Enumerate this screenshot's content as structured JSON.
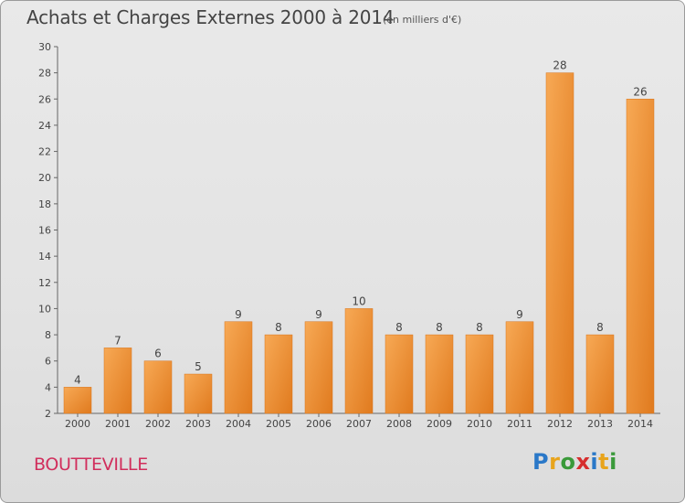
{
  "header": {
    "title": "Achats et Charges Externes 2000 à 2014",
    "unit": "(en milliers d'€)"
  },
  "footer": {
    "commune": "BOUTTEVILLE",
    "logo_letters": [
      "P",
      "r",
      "o",
      "x",
      "i",
      "t",
      "i"
    ],
    "logo_colors": [
      "#2a78c8",
      "#e8a41c",
      "#3a9a3a",
      "#d62e2e",
      "#2a78c8",
      "#e8a41c",
      "#3a9a3a"
    ]
  },
  "colors": {
    "bar_light": "#f7a955",
    "bar_dark": "#e07a1e",
    "axis": "#666666",
    "grid": "#c8c8c8"
  },
  "chart_data": {
    "type": "bar",
    "categories": [
      "2000",
      "2001",
      "2002",
      "2003",
      "2004",
      "2005",
      "2006",
      "2007",
      "2008",
      "2009",
      "2010",
      "2011",
      "2012",
      "2013",
      "2014"
    ],
    "values": [
      4,
      7,
      6,
      5,
      9,
      8,
      9,
      10,
      8,
      8,
      8,
      9,
      28,
      8,
      26
    ],
    "data_labels": [
      "4",
      "7",
      "6",
      "5",
      "9",
      "8",
      "9",
      "10",
      "8",
      "8",
      "8",
      "9",
      "28",
      "8",
      "26"
    ],
    "yticks": [
      "2",
      "4",
      "6",
      "8",
      "10",
      "12",
      "14",
      "16",
      "18",
      "20",
      "22",
      "24",
      "26",
      "28",
      "30"
    ],
    "ylim": [
      2,
      30
    ],
    "title": "Achats et Charges Externes 2000 à 2014",
    "xlabel": "",
    "ylabel": "",
    "grid": false
  }
}
